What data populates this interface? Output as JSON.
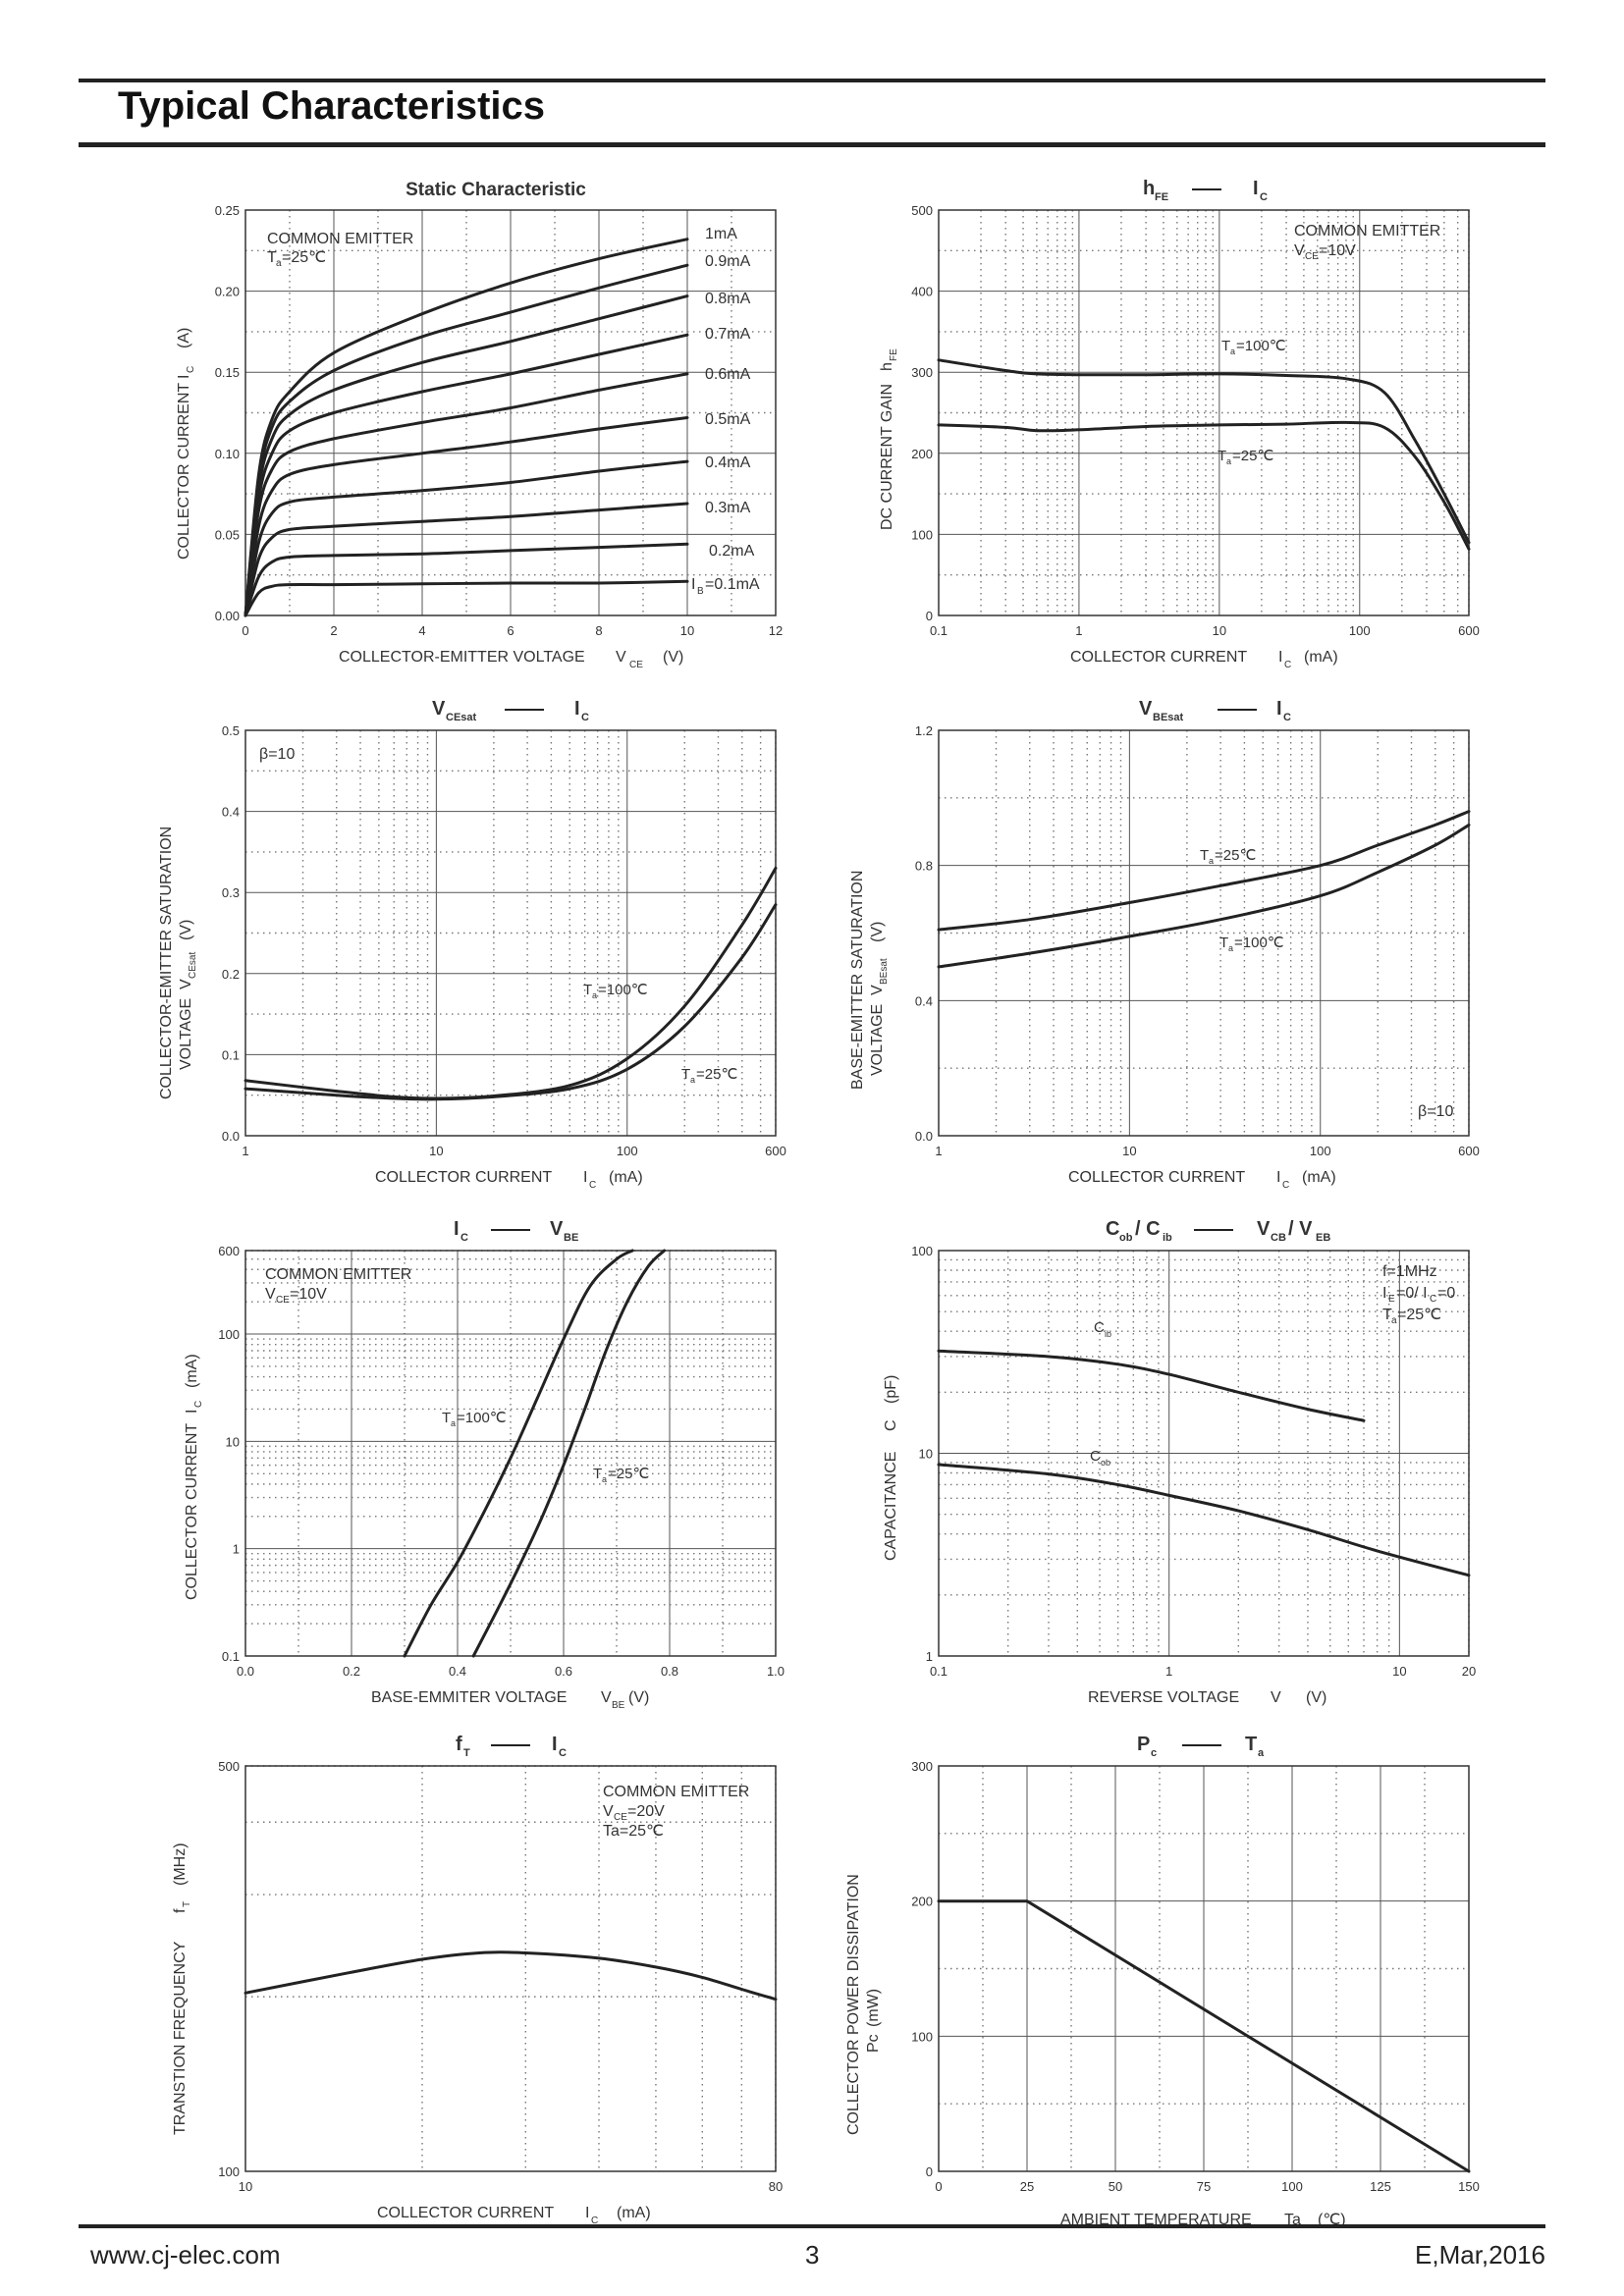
{
  "page": {
    "title": "Typical Characteristics",
    "footer_left": "www.cj-elec.com",
    "footer_center": "3",
    "footer_right": "E,Mar,2016"
  },
  "chart_data": [
    {
      "id": "static",
      "type": "line",
      "title": "Static Characteristic",
      "xlabel": "COLLECTOR-EMITTER VOLTAGE V_CE (V)",
      "ylabel": "COLLECTOR CURRENT I_C (A)",
      "x_scale": "linear",
      "y_scale": "linear",
      "xlim": [
        0,
        12
      ],
      "ylim": [
        0,
        0.25
      ],
      "x_ticks": [
        "0",
        "2",
        "4",
        "6",
        "8",
        "10",
        "12"
      ],
      "y_ticks": [
        "0.00",
        "0.05",
        "0.10",
        "0.15",
        "0.20",
        "0.25"
      ],
      "annotations": [
        "COMMON EMITTER",
        "Ta=25℃"
      ],
      "series": [
        {
          "name": "IB=0.1mA",
          "x": [
            0,
            0.3,
            0.6,
            1,
            2,
            4,
            6,
            8,
            10
          ],
          "y": [
            0,
            0.014,
            0.018,
            0.019,
            0.019,
            0.0195,
            0.02,
            0.02,
            0.021
          ]
        },
        {
          "name": "0.2mA",
          "x": [
            0,
            0.3,
            0.6,
            1,
            2,
            4,
            6,
            8,
            10
          ],
          "y": [
            0,
            0.024,
            0.033,
            0.036,
            0.037,
            0.038,
            0.04,
            0.042,
            0.044
          ]
        },
        {
          "name": "0.3mA",
          "x": [
            0,
            0.3,
            0.6,
            1,
            2,
            4,
            6,
            8,
            10
          ],
          "y": [
            0,
            0.035,
            0.048,
            0.053,
            0.055,
            0.058,
            0.061,
            0.065,
            0.069
          ]
        },
        {
          "name": "0.4mA",
          "x": [
            0,
            0.3,
            0.6,
            1,
            2,
            4,
            6,
            8,
            10
          ],
          "y": [
            0,
            0.045,
            0.063,
            0.07,
            0.073,
            0.077,
            0.082,
            0.089,
            0.095
          ]
        },
        {
          "name": "0.5mA",
          "x": [
            0,
            0.3,
            0.6,
            1,
            2,
            4,
            6,
            8,
            10
          ],
          "y": [
            0,
            0.055,
            0.077,
            0.087,
            0.093,
            0.1,
            0.107,
            0.115,
            0.122
          ]
        },
        {
          "name": "0.6mA",
          "x": [
            0,
            0.3,
            0.6,
            1,
            2,
            4,
            6,
            8,
            10
          ],
          "y": [
            0,
            0.065,
            0.09,
            0.101,
            0.109,
            0.119,
            0.128,
            0.139,
            0.149
          ]
        },
        {
          "name": "0.7mA",
          "x": [
            0,
            0.3,
            0.6,
            1,
            2,
            4,
            6,
            8,
            10
          ],
          "y": [
            0,
            0.072,
            0.1,
            0.114,
            0.125,
            0.138,
            0.149,
            0.161,
            0.173
          ]
        },
        {
          "name": "0.8mA",
          "x": [
            0,
            0.3,
            0.6,
            1,
            2,
            4,
            6,
            8,
            10
          ],
          "y": [
            0,
            0.078,
            0.109,
            0.124,
            0.139,
            0.156,
            0.169,
            0.183,
            0.197
          ]
        },
        {
          "name": "0.9mA",
          "x": [
            0,
            0.3,
            0.6,
            1,
            2,
            4,
            6,
            8,
            10
          ],
          "y": [
            0,
            0.083,
            0.116,
            0.132,
            0.151,
            0.172,
            0.187,
            0.202,
            0.216
          ]
        },
        {
          "name": "1mA",
          "x": [
            0,
            0.3,
            0.6,
            1,
            2,
            4,
            6,
            8,
            10
          ],
          "y": [
            0,
            0.087,
            0.121,
            0.138,
            0.162,
            0.186,
            0.205,
            0.22,
            0.232
          ]
        }
      ]
    },
    {
      "id": "hfe",
      "type": "line",
      "title": "hFE —— IC",
      "xlabel": "COLLECTOR CURRENT I_C (mA)",
      "ylabel": "DC CURRENT GAIN h_FE",
      "x_scale": "log",
      "y_scale": "linear",
      "xlim": [
        0.1,
        600
      ],
      "ylim": [
        0,
        500
      ],
      "x_ticks": [
        "0.1",
        "1",
        "10",
        "100",
        "600"
      ],
      "y_ticks": [
        "0",
        "100",
        "200",
        "300",
        "400",
        "500"
      ],
      "annotations": [
        "COMMON EMITTER",
        "VCE=10V"
      ],
      "series": [
        {
          "name": "Ta=100℃",
          "x": [
            0.1,
            0.3,
            0.5,
            1,
            3,
            10,
            30,
            80,
            150,
            250,
            400,
            600
          ],
          "y": [
            315,
            302,
            298,
            297,
            297,
            298,
            296,
            292,
            275,
            215,
            150,
            90
          ]
        },
        {
          "name": "Ta=25℃",
          "x": [
            0.1,
            0.3,
            0.5,
            1,
            3,
            10,
            30,
            80,
            150,
            250,
            400,
            600
          ],
          "y": [
            235,
            232,
            228,
            229,
            233,
            235,
            236,
            238,
            232,
            195,
            140,
            82
          ]
        }
      ]
    },
    {
      "id": "vcesat",
      "type": "line",
      "title": "VCEsat —— IC",
      "xlabel": "COLLECTOR CURRENT I_C (mA)",
      "ylabel": "COLLECTOR-EMITTER SATURATION VOLTAGE V_CEsat (V)",
      "x_scale": "log",
      "y_scale": "linear",
      "xlim": [
        1,
        600
      ],
      "ylim": [
        0,
        0.5
      ],
      "x_ticks": [
        "1",
        "10",
        "100",
        "600"
      ],
      "y_ticks": [
        "0.0",
        "0.1",
        "0.2",
        "0.3",
        "0.4",
        "0.5"
      ],
      "annotations": [
        "β=10"
      ],
      "series": [
        {
          "name": "Ta=100℃",
          "x": [
            1,
            3,
            6,
            10,
            20,
            50,
            100,
            200,
            400,
            600
          ],
          "y": [
            0.068,
            0.055,
            0.048,
            0.046,
            0.049,
            0.062,
            0.095,
            0.16,
            0.26,
            0.33
          ]
        },
        {
          "name": "Ta=25℃",
          "x": [
            1,
            3,
            6,
            10,
            20,
            50,
            100,
            200,
            400,
            600
          ],
          "y": [
            0.058,
            0.05,
            0.046,
            0.045,
            0.048,
            0.058,
            0.082,
            0.135,
            0.22,
            0.285
          ]
        }
      ]
    },
    {
      "id": "vbesat",
      "type": "line",
      "title": "VBEsat —— IC",
      "xlabel": "COLLECTOR CURRENT I_C (mA)",
      "ylabel": "BASE-EMITTER SATURATION VOLTAGE V_BEsat (V)",
      "x_scale": "log",
      "y_scale": "linear",
      "xlim": [
        1,
        600
      ],
      "ylim": [
        0,
        1.2
      ],
      "x_ticks": [
        "1",
        "10",
        "100",
        "600"
      ],
      "y_ticks": [
        "0.0",
        "0.4",
        "0.8",
        "1.2"
      ],
      "annotations": [
        "β=10"
      ],
      "series": [
        {
          "name": "Ta=25℃",
          "x": [
            1,
            3,
            10,
            30,
            100,
            200,
            400,
            600
          ],
          "y": [
            0.61,
            0.64,
            0.69,
            0.74,
            0.8,
            0.86,
            0.92,
            0.96
          ]
        },
        {
          "name": "Ta=100℃",
          "x": [
            1,
            3,
            10,
            30,
            100,
            200,
            400,
            600
          ],
          "y": [
            0.5,
            0.54,
            0.59,
            0.64,
            0.71,
            0.78,
            0.86,
            0.92
          ]
        }
      ]
    },
    {
      "id": "ic-vbe",
      "type": "line",
      "title": "IC —— VBE",
      "xlabel": "BASE-EMMITER VOLTAGE V_BE (V)",
      "ylabel": "COLLECTOR CURRENT I_C (mA)",
      "x_scale": "linear",
      "y_scale": "log",
      "xlim": [
        0,
        1.0
      ],
      "ylim": [
        0.1,
        600
      ],
      "x_ticks": [
        "0.0",
        "0.2",
        "0.4",
        "0.6",
        "0.8",
        "1.0"
      ],
      "y_ticks": [
        "0.1",
        "1",
        "10",
        "100",
        "600"
      ],
      "annotations": [
        "COMMON EMITTER",
        "VCE=10V"
      ],
      "series": [
        {
          "name": "Ta=100℃",
          "x": [
            0.3,
            0.35,
            0.4,
            0.45,
            0.5,
            0.55,
            0.6,
            0.65,
            0.7,
            0.73
          ],
          "y": [
            0.1,
            0.3,
            0.75,
            2.2,
            7,
            25,
            90,
            280,
            500,
            600
          ]
        },
        {
          "name": "Ta=25℃",
          "x": [
            0.43,
            0.48,
            0.52,
            0.56,
            0.6,
            0.64,
            0.68,
            0.72,
            0.76,
            0.79
          ],
          "y": [
            0.1,
            0.3,
            0.75,
            2,
            6,
            20,
            70,
            200,
            430,
            600
          ]
        }
      ]
    },
    {
      "id": "capacitance",
      "type": "line",
      "title": "Cob / Cib —— VCB / VEB",
      "xlabel": "REVERSE VOLTAGE V (V)",
      "ylabel": "CAPACITANCE C (pF)",
      "x_scale": "log",
      "y_scale": "log",
      "xlim": [
        0.1,
        20
      ],
      "ylim": [
        1,
        100
      ],
      "x_ticks": [
        "0.1",
        "1",
        "10",
        "20"
      ],
      "y_ticks": [
        "1",
        "10",
        "100"
      ],
      "annotations": [
        "f=1MHz",
        "IE=0/ IC=0",
        "Ta=25℃"
      ],
      "series": [
        {
          "name": "Cib",
          "x": [
            0.1,
            0.3,
            0.6,
            1,
            2,
            4,
            7
          ],
          "y": [
            32,
            30,
            27.5,
            24.5,
            20,
            16.5,
            14.5
          ]
        },
        {
          "name": "Cob",
          "x": [
            0.1,
            0.3,
            0.6,
            1,
            2,
            4,
            8,
            20
          ],
          "y": [
            8.8,
            7.9,
            7,
            6.2,
            5.2,
            4.2,
            3.3,
            2.5
          ]
        }
      ]
    },
    {
      "id": "ft",
      "type": "line",
      "title": "fT —— IC",
      "xlabel": "COLLECTOR CURRENT I_C (mA)",
      "ylabel": "TRANSTION FREQUENCY f_T (MHz)",
      "x_scale": "log",
      "y_scale": "log",
      "xlim": [
        10,
        80
      ],
      "ylim": [
        100,
        500
      ],
      "x_ticks": [
        "10",
        "80"
      ],
      "y_ticks": [
        "100",
        "500"
      ],
      "annotations": [
        "COMMON EMITTER",
        "VCE=20V",
        "Ta=25℃"
      ],
      "series": [
        {
          "name": "",
          "x": [
            10,
            15,
            20,
            25,
            30,
            40,
            50,
            60,
            70,
            80
          ],
          "y": [
            203,
            220,
            232,
            238,
            238,
            233,
            225,
            216,
            206,
            198
          ]
        }
      ]
    },
    {
      "id": "pc",
      "type": "line",
      "title": "Pc —— Ta",
      "xlabel": "AMBIENT TEMPERATURE Ta (℃)",
      "ylabel": "COLLECTOR POWER DISSIPATION Pc (mW)",
      "x_scale": "linear",
      "y_scale": "linear",
      "xlim": [
        0,
        150
      ],
      "ylim": [
        0,
        300
      ],
      "x_ticks": [
        "0",
        "25",
        "50",
        "75",
        "100",
        "125",
        "150"
      ],
      "y_ticks": [
        "0",
        "100",
        "200",
        "300"
      ],
      "annotations": [],
      "series": [
        {
          "name": "",
          "x": [
            0,
            25,
            150
          ],
          "y": [
            200,
            200,
            0
          ]
        }
      ]
    }
  ]
}
